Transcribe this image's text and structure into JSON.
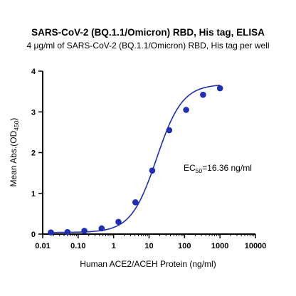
{
  "chart_data": {
    "type": "scatter",
    "title": "SARS-CoV-2 (BQ.1.1/Omicron) RBD, His tag, ELISA",
    "subtitle": "4 μg/ml of SARS-CoV-2 (BQ.1.1/Omicron) RBD, His tag per well",
    "xlabel": "Human ACE2/ACEH Protein (ng/ml)",
    "ylabel_main": "Mean Abs.(OD",
    "ylabel_sub": "450",
    "ylabel_end": ")",
    "x_scale": "log",
    "xlim": [
      0.01,
      10000
    ],
    "ylim": [
      0,
      4
    ],
    "x_ticks": [
      0.01,
      0.1,
      1,
      10,
      100,
      1000,
      10000
    ],
    "x_tick_labels": [
      "0.01",
      "0.10",
      "1",
      "10",
      "100",
      "1000",
      "10000"
    ],
    "y_ticks": [
      0,
      1,
      2,
      3,
      4
    ],
    "y_tick_labels": [
      "0",
      "1",
      "2",
      "3",
      "4"
    ],
    "grid": false,
    "series": [
      {
        "x": [
          0.017,
          0.05,
          0.15,
          0.46,
          1.37,
          4.12,
          12.3,
          37,
          111,
          333,
          1000
        ],
        "y": [
          0.04,
          0.05,
          0.08,
          0.14,
          0.3,
          0.78,
          1.56,
          2.55,
          3.05,
          3.42,
          3.58
        ],
        "fit": {
          "model": "4PL",
          "bottom": 0.04,
          "top": 3.68,
          "ec50": 16.36,
          "hill": 1.2
        },
        "color": "#1f2fb0"
      }
    ],
    "annotation": {
      "prefix": "EC",
      "sub": "50",
      "suffix": "=16.36 ng/ml"
    }
  }
}
